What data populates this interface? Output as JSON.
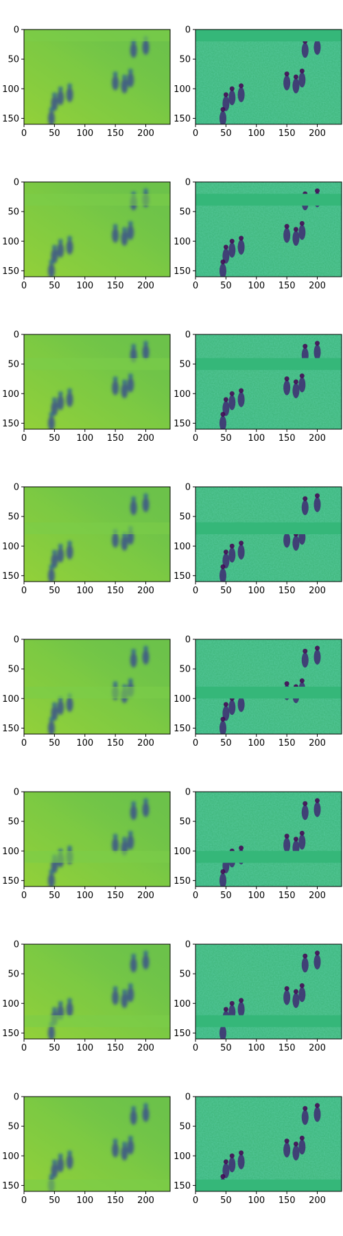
{
  "chart_data": {
    "type": "heatmap",
    "colormap": "viridis",
    "layout": {
      "rows": 8,
      "cols": 2
    },
    "x_range": [
      0,
      240
    ],
    "y_range": [
      160,
      0
    ],
    "x_ticks": [
      0,
      50,
      100,
      150,
      200
    ],
    "y_ticks": [
      0,
      50,
      100,
      150
    ],
    "band_y_ranges": [
      [
        0,
        20
      ],
      [
        20,
        40
      ],
      [
        40,
        60
      ],
      [
        60,
        80
      ],
      [
        80,
        100
      ],
      [
        100,
        120
      ],
      [
        120,
        140
      ],
      [
        140,
        160
      ]
    ],
    "panel_left": {
      "description": "smoothed reconstruction",
      "background_colors": [
        "#6cc24a",
        "#8fd23a",
        "#b2dc2c"
      ]
    },
    "panel_right": {
      "description": "detail / residual map",
      "background_colors": [
        "#3bb57a",
        "#48b46c",
        "#33b27f"
      ]
    },
    "figures": [
      {
        "x": 165,
        "y": 95
      },
      {
        "x": 150,
        "y": 90
      },
      {
        "x": 175,
        "y": 85
      },
      {
        "x": 50,
        "y": 125
      },
      {
        "x": 60,
        "y": 115
      },
      {
        "x": 75,
        "y": 110
      },
      {
        "x": 180,
        "y": 35
      },
      {
        "x": 200,
        "y": 30
      },
      {
        "x": 45,
        "y": 150
      }
    ]
  }
}
